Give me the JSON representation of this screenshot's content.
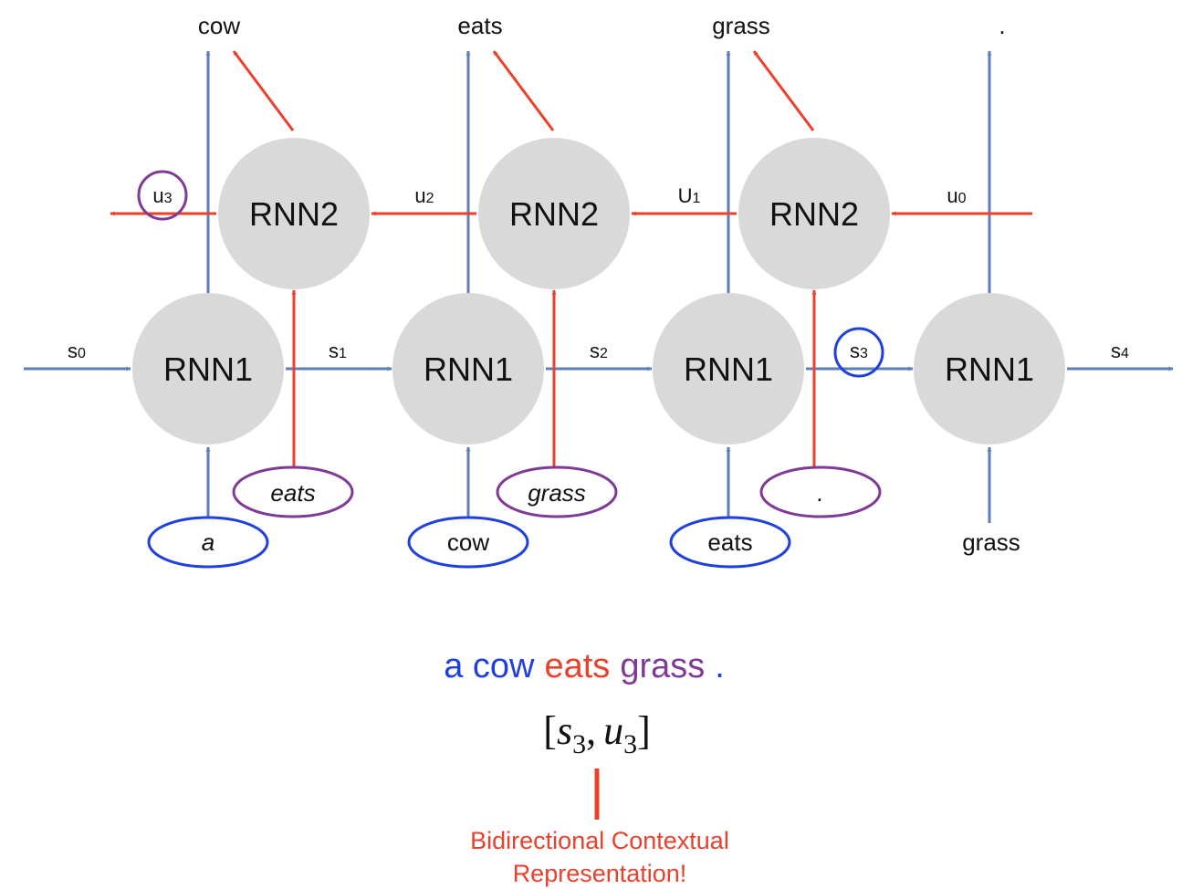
{
  "colors": {
    "blue": "#5b7fb8",
    "red": "#e8412c",
    "purple": "#7f3a96",
    "circle_blue": "#1f3fe0",
    "node_fill": "#d9d9d9",
    "text": "#111111"
  },
  "diagram": {
    "outputs": [
      "cow",
      "eats",
      "grass",
      "."
    ],
    "rnn1_label": "RNN1",
    "rnn2_label": "RNN2",
    "forward_states": [
      {
        "base": "s",
        "sub": "0"
      },
      {
        "base": "s",
        "sub": "1"
      },
      {
        "base": "s",
        "sub": "2"
      },
      {
        "base": "s",
        "sub": "3"
      },
      {
        "base": "s",
        "sub": "4"
      }
    ],
    "backward_states": [
      {
        "base": "u",
        "sub": "3"
      },
      {
        "base": "u",
        "sub": "2"
      },
      {
        "base": "U",
        "sub": "1"
      },
      {
        "base": "u",
        "sub": "0"
      }
    ],
    "rnn1_inputs": [
      "a",
      "cow",
      "eats",
      "grass"
    ],
    "rnn2_inputs": [
      "eats",
      "grass",
      "."
    ]
  },
  "sentence": [
    {
      "text": "a cow",
      "color": "#1f3fe0"
    },
    {
      "text": "eats",
      "color": "#e8412c"
    },
    {
      "text": "grass",
      "color": "#7f3a96"
    },
    {
      "text": ".",
      "color": "#1f3fe0"
    }
  ],
  "formula": {
    "open": "[",
    "s": "s",
    "s_sub": "3",
    "comma": ",",
    "u": "u",
    "u_sub": "3",
    "close": "]"
  },
  "caption": {
    "line1": "Bidirectional Contextual",
    "line2": "Representation!"
  }
}
